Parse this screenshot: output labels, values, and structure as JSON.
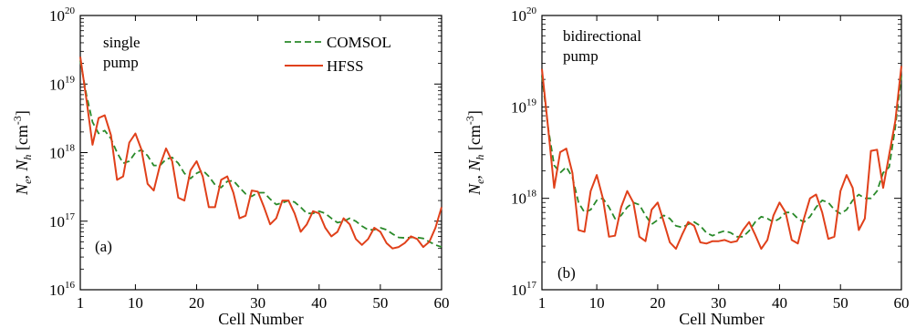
{
  "chart_data": [
    {
      "type": "line",
      "panel_label": "(a)",
      "annotation": [
        "single",
        "pump"
      ],
      "xlabel": "Cell Number",
      "ylabel_parts": [
        "N",
        "e",
        ", ",
        "N",
        "h",
        " [cm",
        "-3",
        "]"
      ],
      "xlim": [
        1,
        60
      ],
      "ylim_log10": [
        16,
        20
      ],
      "yscale": "log",
      "xticks": [
        1,
        10,
        20,
        30,
        40,
        50,
        60
      ],
      "yticks": [
        {
          "base": "10",
          "exp": "16"
        },
        {
          "base": "10",
          "exp": "17"
        },
        {
          "base": "10",
          "exp": "18"
        },
        {
          "base": "10",
          "exp": "19"
        },
        {
          "base": "10",
          "exp": "20"
        }
      ],
      "legend_position": "top-right",
      "series": [
        {
          "name": "COMSOL",
          "color": "#2a8a2a",
          "dash": "dashed",
          "x": [
            1,
            2,
            3,
            4,
            5,
            6,
            7,
            8,
            9,
            10,
            11,
            12,
            13,
            14,
            15,
            16,
            17,
            18,
            19,
            20,
            21,
            22,
            23,
            24,
            25,
            26,
            27,
            28,
            29,
            30,
            31,
            32,
            33,
            34,
            35,
            36,
            37,
            38,
            39,
            40,
            41,
            42,
            43,
            44,
            45,
            46,
            47,
            48,
            49,
            50,
            51,
            52,
            53,
            54,
            55,
            56,
            57,
            58,
            59,
            60
          ],
          "values": [
            2.2e+19,
            7e+18,
            2.8e+18,
            1.9e+18,
            2.1e+18,
            1.6e+18,
            1e+18,
            7e+17,
            7.5e+17,
            1e+18,
            1.1e+18,
            9e+17,
            6.5e+17,
            6.5e+17,
            8e+17,
            8.5e+17,
            7e+17,
            5e+17,
            4.2e+17,
            5e+17,
            5.5e+17,
            4.5e+17,
            3.4e+17,
            3.1e+17,
            3.8e+17,
            3.9e+17,
            3.1e+17,
            2.5e+17,
            2.3e+17,
            2.6e+17,
            2.6e+17,
            2.1e+17,
            1.75e+17,
            1.85e+17,
            2e+17,
            1.9e+17,
            1.6e+17,
            1.3e+17,
            1.3e+17,
            1.4e+17,
            1.3e+17,
            1.1e+17,
            9.5e+16,
            1e+17,
            1.1e+17,
            1e+17,
            8.5e+16,
            7.5e+16,
            7.5e+16,
            8e+16,
            7.5e+16,
            6.5e+16,
            5.8e+16,
            5.7e+16,
            5.8e+16,
            5.8e+16,
            5.6e+16,
            5e+16,
            4.5e+16,
            4.2e+16
          ]
        },
        {
          "name": "HFSS",
          "color": "#e0401a",
          "dash": "solid",
          "x": [
            1,
            2,
            3,
            4,
            5,
            6,
            7,
            8,
            9,
            10,
            11,
            12,
            13,
            14,
            15,
            16,
            17,
            18,
            19,
            20,
            21,
            22,
            23,
            24,
            25,
            26,
            27,
            28,
            29,
            30,
            31,
            32,
            33,
            34,
            35,
            36,
            37,
            38,
            39,
            40,
            41,
            42,
            43,
            44,
            45,
            46,
            47,
            48,
            49,
            50,
            51,
            52,
            53,
            54,
            55,
            56,
            57,
            58,
            59,
            60
          ],
          "values": [
            2.5e+19,
            6e+18,
            1.3e+18,
            3.2e+18,
            3.5e+18,
            1.8e+18,
            4e+17,
            4.5e+17,
            1.4e+18,
            1.9e+18,
            1.1e+18,
            3.5e+17,
            2.8e+17,
            6.5e+17,
            1.15e+18,
            7.5e+17,
            2.2e+17,
            2e+17,
            5.5e+17,
            7.5e+17,
            4.5e+17,
            1.6e+17,
            1.6e+17,
            4e+17,
            4.5e+17,
            2.6e+17,
            1.1e+17,
            1.2e+17,
            2.8e+17,
            2.7e+17,
            1.6e+17,
            9e+16,
            1.1e+17,
            2e+17,
            2e+17,
            1.3e+17,
            7e+16,
            9e+16,
            1.4e+17,
            1.3e+17,
            8e+16,
            6e+16,
            7e+16,
            1.1e+17,
            9e+16,
            5.5e+16,
            4.5e+16,
            5.5e+16,
            8e+16,
            7e+16,
            4.8e+16,
            4e+16,
            4.2e+16,
            4.8e+16,
            6e+16,
            5.5e+16,
            4.2e+16,
            5e+16,
            8e+16,
            1.6e+17
          ]
        }
      ]
    },
    {
      "type": "line",
      "panel_label": "(b)",
      "annotation": [
        "bidirectional",
        "pump"
      ],
      "xlabel": "Cell Number",
      "ylabel_parts": [
        "N",
        "e",
        ", ",
        "N",
        "h",
        " [cm",
        "-3",
        "]"
      ],
      "xlim": [
        1,
        60
      ],
      "ylim_log10": [
        17,
        20
      ],
      "yscale": "log",
      "xticks": [
        1,
        10,
        20,
        30,
        40,
        50,
        60
      ],
      "yticks": [
        {
          "base": "10",
          "exp": "17"
        },
        {
          "base": "10",
          "exp": "18"
        },
        {
          "base": "10",
          "exp": "19"
        },
        {
          "base": "10",
          "exp": "20"
        }
      ],
      "series": [
        {
          "name": "COMSOL",
          "color": "#2a8a2a",
          "dash": "dashed",
          "x": [
            1,
            2,
            3,
            4,
            5,
            6,
            7,
            8,
            9,
            10,
            11,
            12,
            13,
            14,
            15,
            16,
            17,
            18,
            19,
            20,
            21,
            22,
            23,
            24,
            25,
            26,
            27,
            28,
            29,
            30,
            31,
            32,
            33,
            34,
            35,
            36,
            37,
            38,
            39,
            40,
            41,
            42,
            43,
            44,
            45,
            46,
            47,
            48,
            49,
            50,
            51,
            52,
            53,
            54,
            55,
            56,
            57,
            58,
            59,
            60
          ],
          "values": [
            2.2e+19,
            6e+18,
            2.3e+18,
            1.9e+18,
            2.2e+18,
            1.7e+18,
            9e+17,
            7e+17,
            7.5e+17,
            9.5e+17,
            1e+18,
            8e+17,
            6e+17,
            6.5e+17,
            8e+17,
            9e+17,
            8.5e+17,
            6.5e+17,
            5.2e+17,
            5.8e+17,
            6.5e+17,
            6e+17,
            5e+17,
            4.8e+17,
            5.2e+17,
            5.5e+17,
            5e+17,
            4.2e+17,
            3.9e+17,
            4.2e+17,
            4.4e+17,
            4.2e+17,
            3.8e+17,
            3.8e+17,
            4.4e+17,
            5.5e+17,
            6.3e+17,
            6e+17,
            5.5e+17,
            6e+17,
            7e+17,
            7e+17,
            6e+17,
            5.5e+17,
            6.3e+17,
            8e+17,
            9.5e+17,
            9e+17,
            7.5e+17,
            6.8e+17,
            7.5e+17,
            9.5e+17,
            1.1e+18,
            1e+18,
            1e+18,
            1.2e+18,
            1.9e+18,
            2.2e+18,
            6e+18,
            2.2e+19
          ]
        },
        {
          "name": "HFSS",
          "color": "#e0401a",
          "dash": "solid",
          "x": [
            1,
            2,
            3,
            4,
            5,
            6,
            7,
            8,
            9,
            10,
            11,
            12,
            13,
            14,
            15,
            16,
            17,
            18,
            19,
            20,
            21,
            22,
            23,
            24,
            25,
            26,
            27,
            28,
            29,
            30,
            31,
            32,
            33,
            34,
            35,
            36,
            37,
            38,
            39,
            40,
            41,
            42,
            43,
            44,
            45,
            46,
            47,
            48,
            49,
            50,
            51,
            52,
            53,
            54,
            55,
            56,
            57,
            58,
            59,
            60
          ],
          "values": [
            2.6e+19,
            6e+18,
            1.3e+18,
            3.2e+18,
            3.5e+18,
            1.9e+18,
            4.5e+17,
            4.3e+17,
            1.2e+18,
            1.8e+18,
            1e+18,
            3.8e+17,
            3.9e+17,
            8e+17,
            1.2e+18,
            9e+17,
            3.8e+17,
            3.4e+17,
            7.5e+17,
            9e+17,
            5.5e+17,
            3.3e+17,
            2.8e+17,
            4e+17,
            5.5e+17,
            5e+17,
            3.3e+17,
            3.2e+17,
            3.4e+17,
            3.4e+17,
            3.5e+17,
            3.3e+17,
            3.4e+17,
            4.5e+17,
            5.5e+17,
            4e+17,
            2.8e+17,
            3.5e+17,
            6.5e+17,
            9e+17,
            7e+17,
            3.5e+17,
            3.2e+17,
            6e+17,
            1e+18,
            1.1e+18,
            7e+17,
            3.6e+17,
            3.8e+17,
            1.2e+18,
            1.8e+18,
            1.3e+18,
            4.5e+17,
            6e+17,
            3.3e+18,
            3.4e+18,
            1.3e+18,
            3e+18,
            7e+18,
            2.8e+19
          ]
        }
      ]
    }
  ]
}
